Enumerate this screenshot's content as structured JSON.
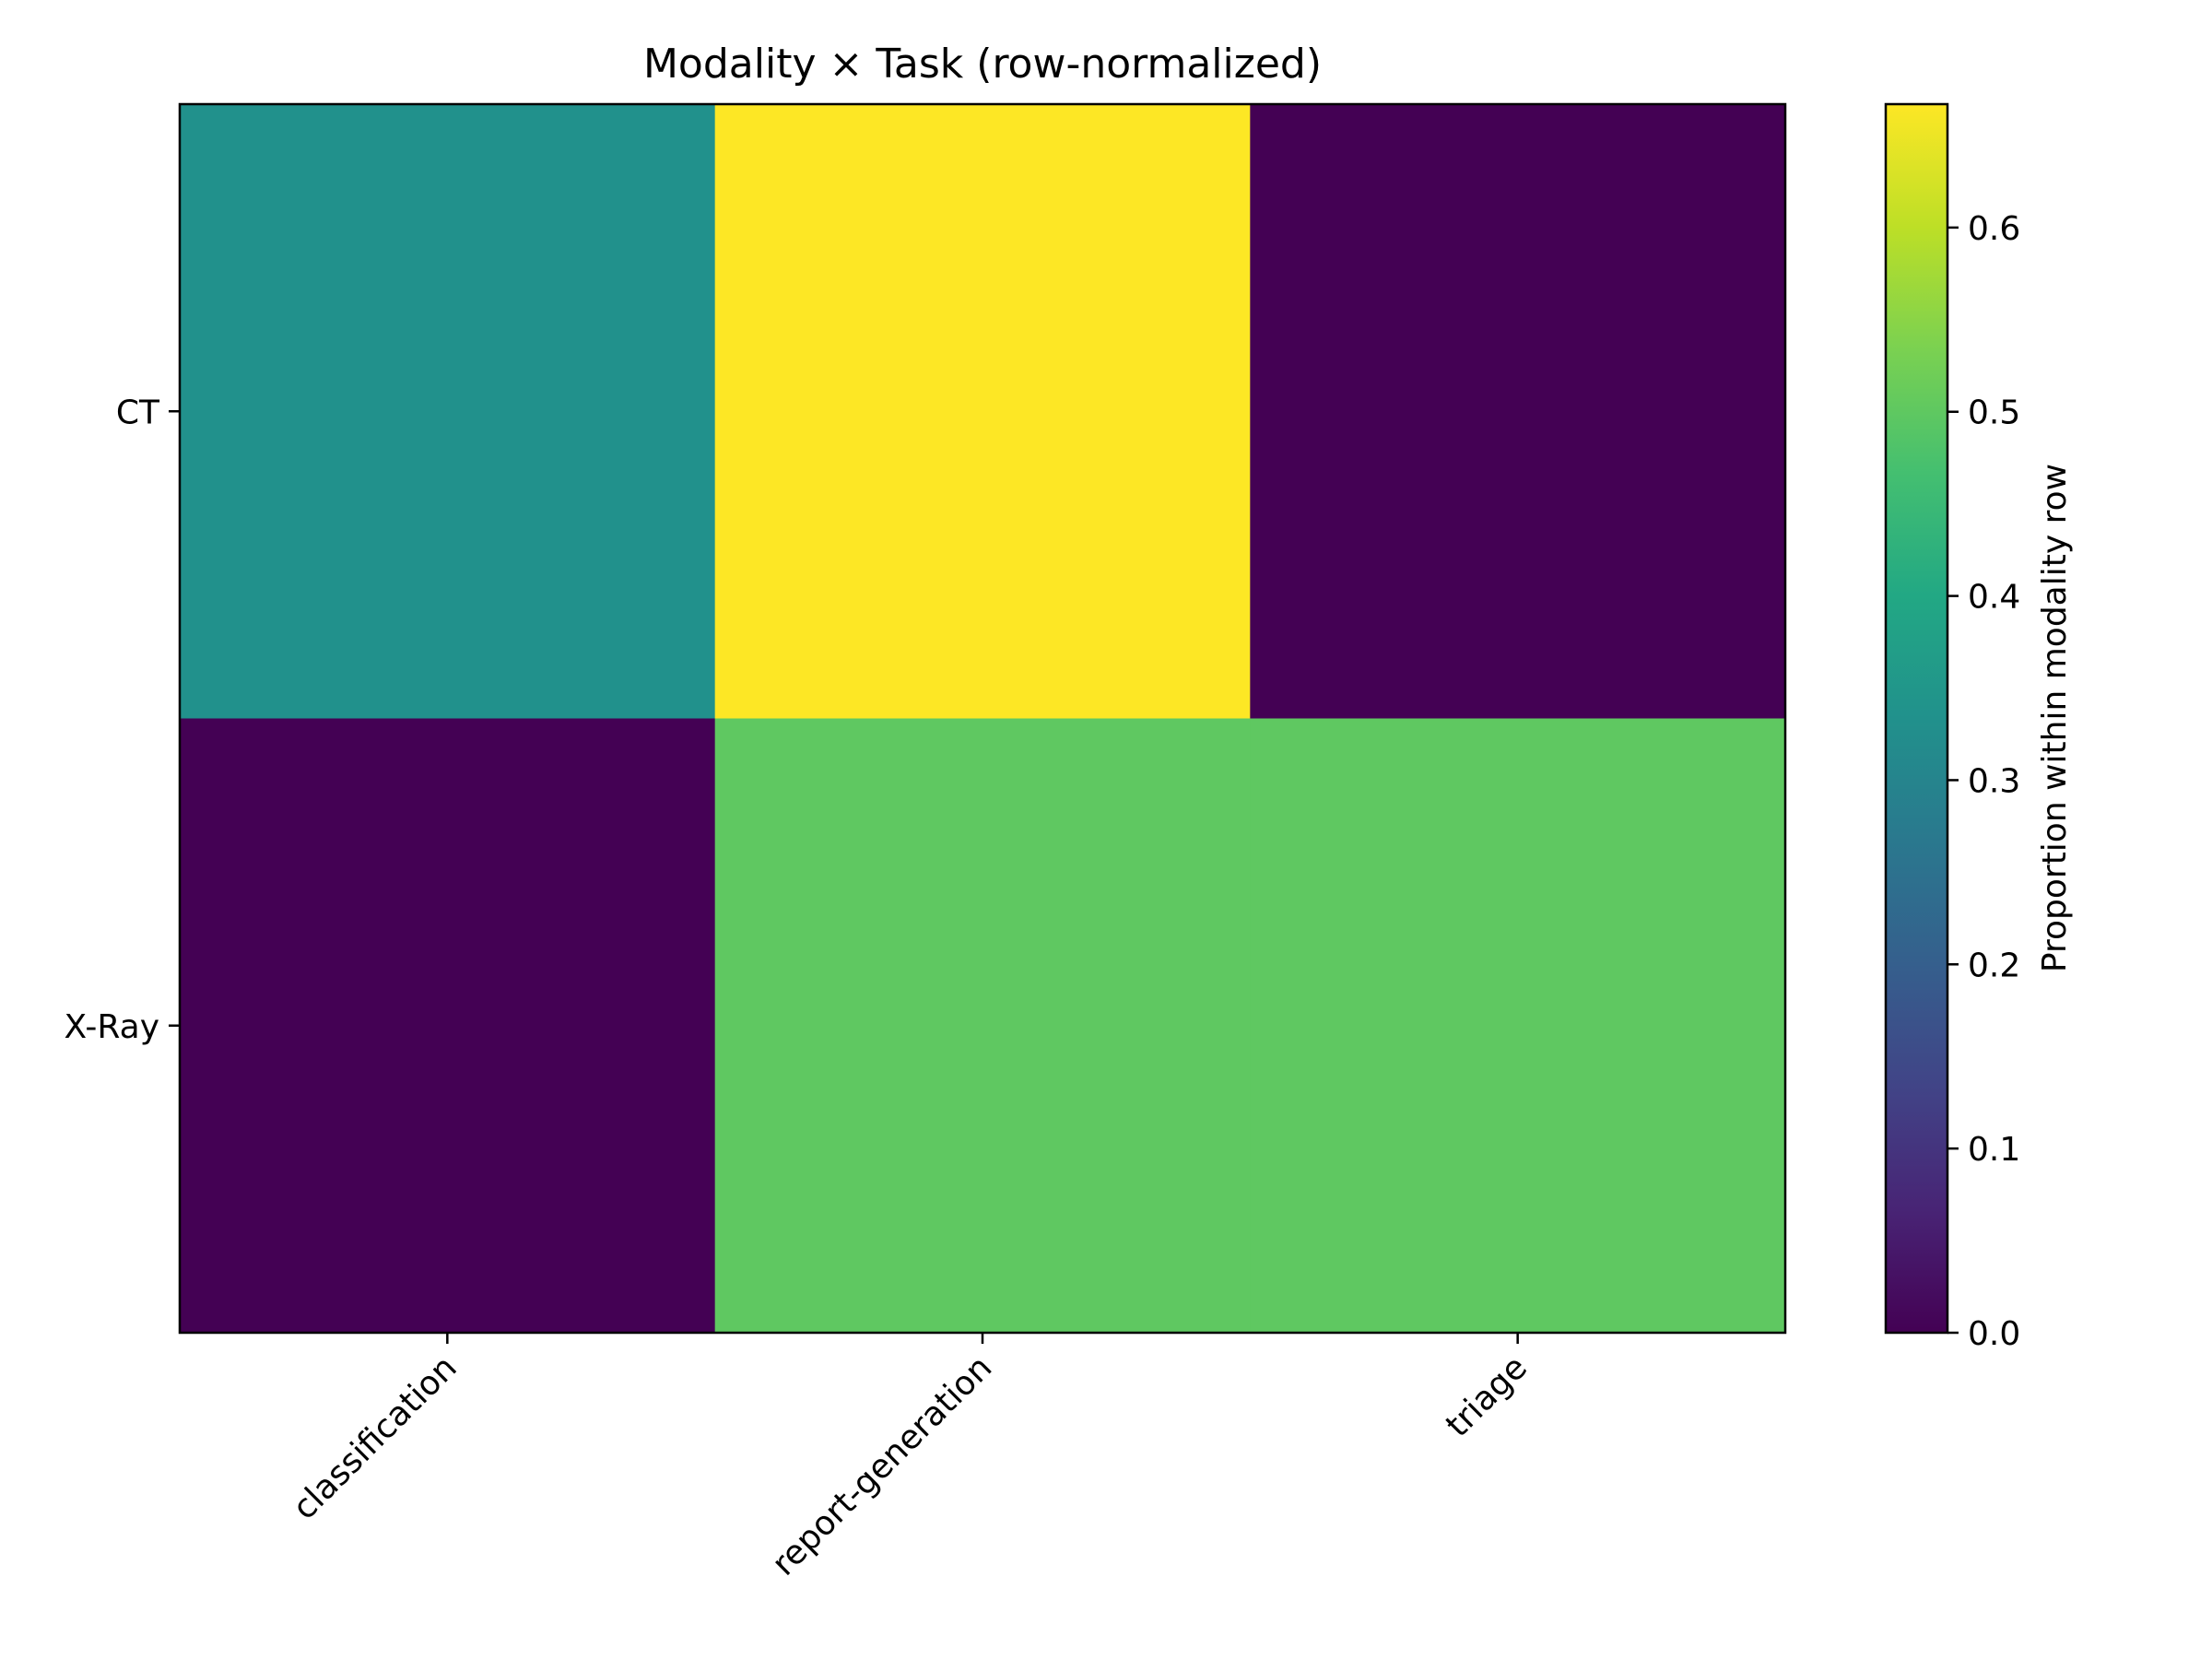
{
  "chart_data": {
    "type": "heatmap",
    "title": "Modality × Task (row-normalized)",
    "rows": [
      "CT",
      "X-Ray"
    ],
    "columns": [
      "classification",
      "report-generation",
      "triage"
    ],
    "values": [
      [
        0.333,
        0.667,
        0.0
      ],
      [
        0.0,
        0.5,
        0.5
      ]
    ],
    "colormap": "viridis",
    "colorbar": {
      "label": "Proportion within modality row",
      "range": [
        0.0,
        0.667
      ],
      "ticks": [
        0.0,
        0.1,
        0.2,
        0.3,
        0.4,
        0.5,
        0.6
      ],
      "tick_labels": [
        "0.0",
        "0.1",
        "0.2",
        "0.3",
        "0.4",
        "0.5",
        "0.6"
      ]
    }
  }
}
